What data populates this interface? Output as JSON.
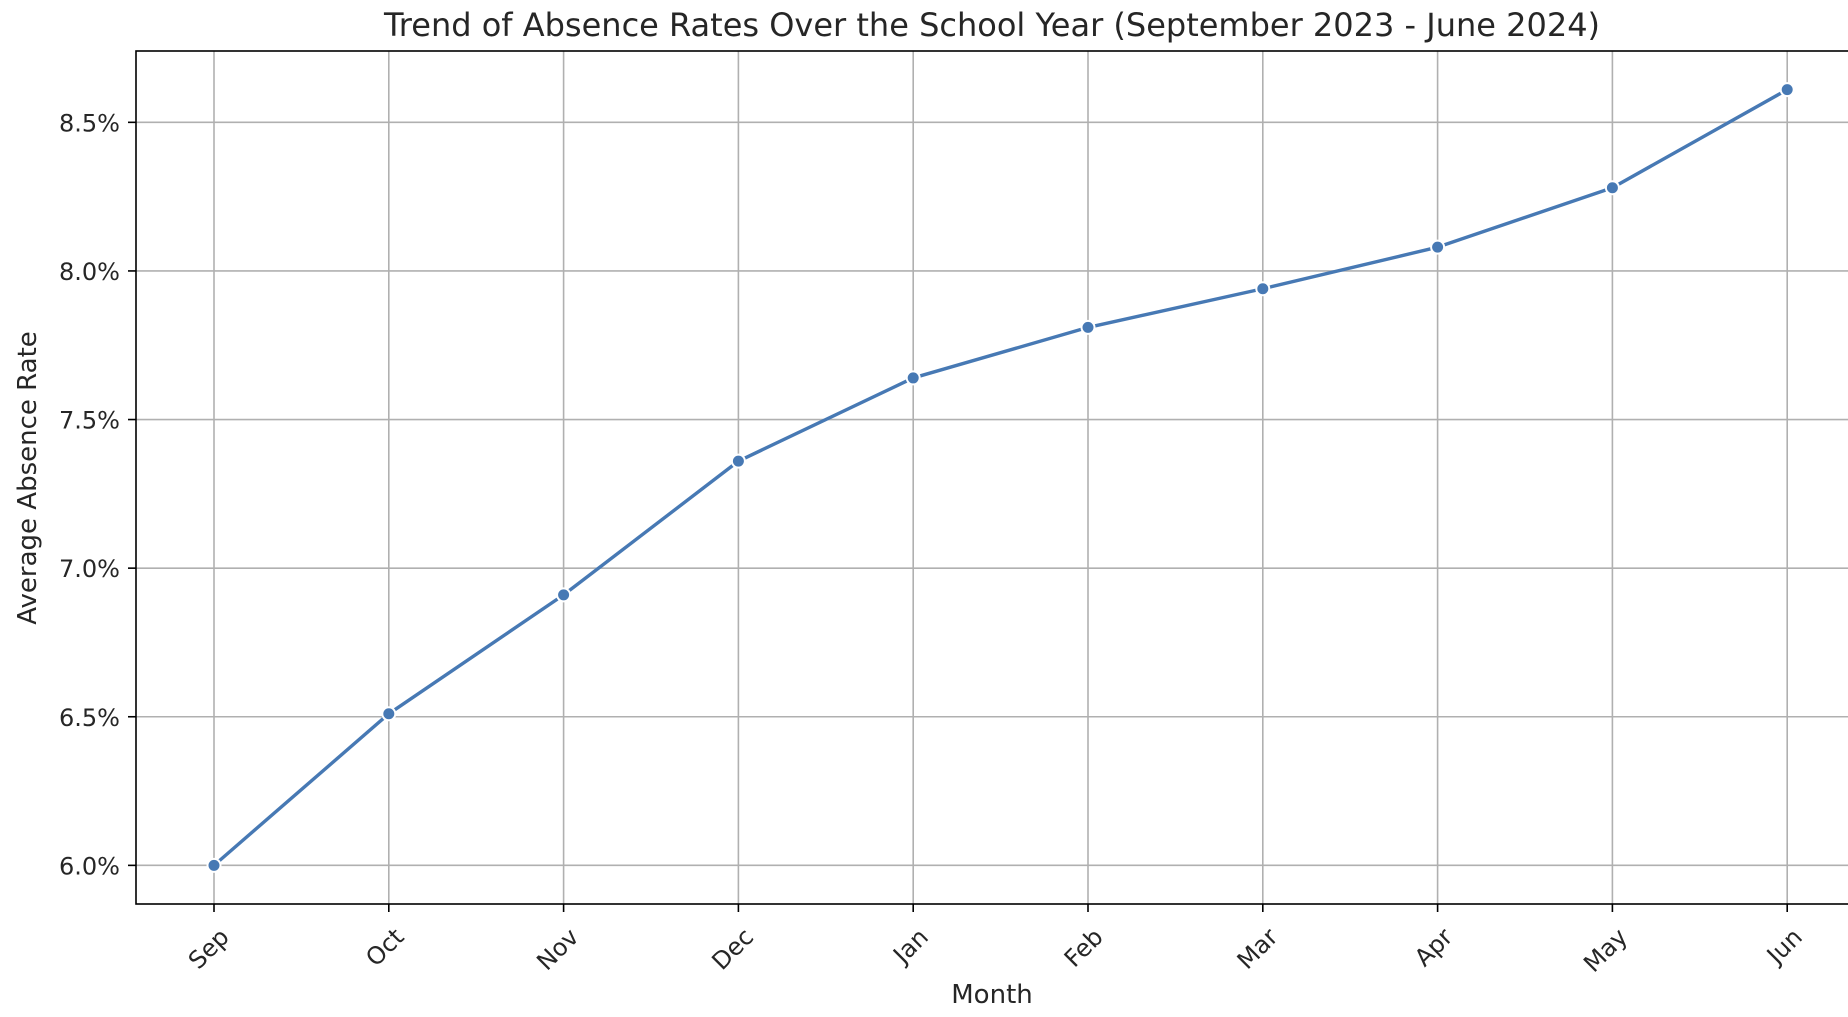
{
  "colors": {
    "series": "#4779B4",
    "grid": "#b0b0b0",
    "frame": "#000000",
    "text": "#262626",
    "background": "#ffffff"
  },
  "chart_data": {
    "type": "line",
    "title": "Trend of Absence Rates Over the School Year (September 2023 - June 2024)",
    "xlabel": "Month",
    "ylabel": "Average Absence Rate",
    "categories": [
      "Sep",
      "Oct",
      "Nov",
      "Dec",
      "Jan",
      "Feb",
      "Mar",
      "Apr",
      "May",
      "Jun"
    ],
    "series": [
      {
        "values": [
          6.0,
          6.51,
          6.91,
          7.36,
          7.64,
          7.81,
          7.94,
          8.08,
          8.28,
          8.61
        ],
        "marker": "circle"
      }
    ],
    "ylim": [
      5.87,
      8.74
    ],
    "yticks": [
      6.0,
      6.5,
      7.0,
      7.5,
      8.0,
      8.5
    ],
    "ytick_labels": [
      "6.0%",
      "6.5%",
      "7.0%",
      "7.5%",
      "8.0%",
      "8.5%"
    ],
    "x_tick_rotation": 45,
    "grid": true,
    "legend": "none"
  }
}
